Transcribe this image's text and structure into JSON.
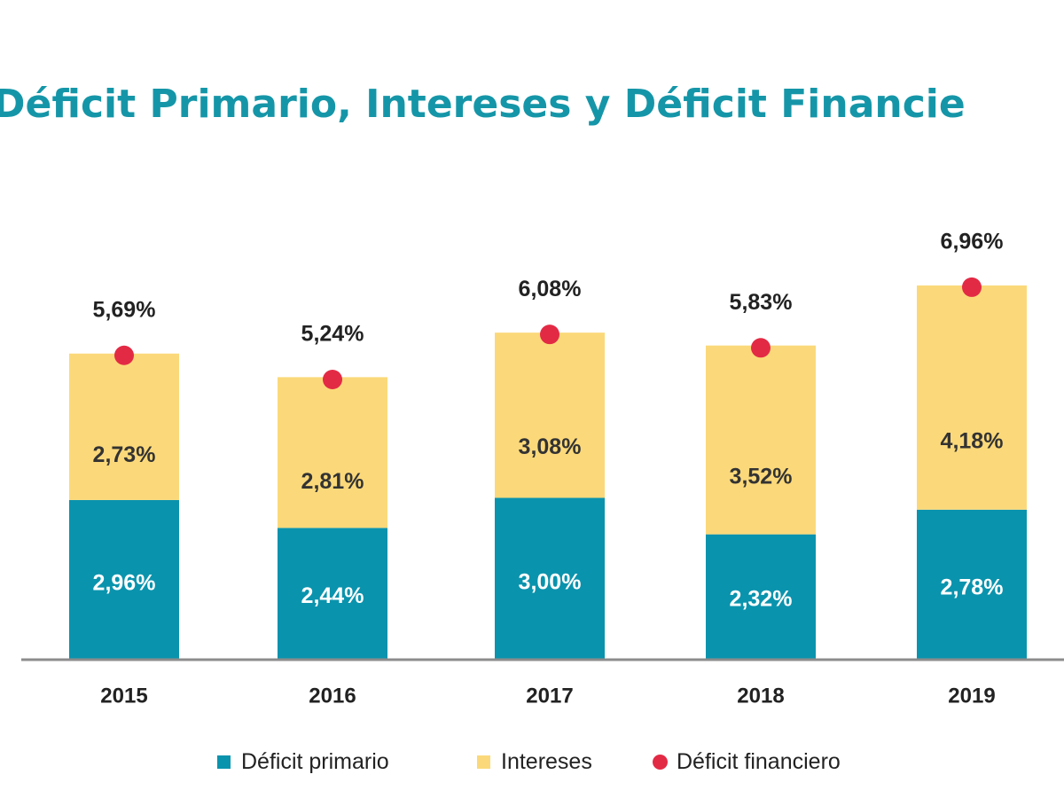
{
  "chart_data": {
    "type": "bar",
    "title": "Déficit Primario, Intereses y Déficit Financie",
    "categories": [
      "2015",
      "2016",
      "2017",
      "2018",
      "2019"
    ],
    "series": [
      {
        "name": "Déficit primario",
        "kind": "stacked-bar",
        "color": "#0a93ad",
        "values": [
          2.96,
          2.44,
          3.0,
          2.32,
          2.78
        ],
        "labels": [
          "2,96%",
          "2,44%",
          "3,00%",
          "2,32%",
          "2,78%"
        ]
      },
      {
        "name": "Intereses",
        "kind": "stacked-bar",
        "color": "#fbd97a",
        "values": [
          2.73,
          2.81,
          3.08,
          3.52,
          4.18
        ],
        "labels": [
          "2,73%",
          "2,81%",
          "3,08%",
          "3,52%",
          "4,18%"
        ]
      },
      {
        "name": "Déficit financiero",
        "kind": "marker",
        "color": "#e32a45",
        "values": [
          5.69,
          5.24,
          6.08,
          5.83,
          6.96
        ],
        "labels": [
          "5,69%",
          "5,24%",
          "6,08%",
          "5,83%",
          "6,96%"
        ]
      }
    ],
    "ylim": [
      0,
      7
    ],
    "grid": false,
    "legend_position": "bottom"
  }
}
